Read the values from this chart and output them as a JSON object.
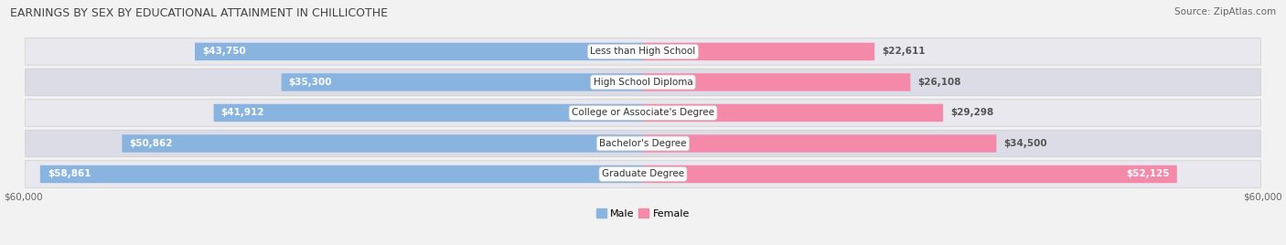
{
  "title": "EARNINGS BY SEX BY EDUCATIONAL ATTAINMENT IN CHILLICOTHE",
  "source": "Source: ZipAtlas.com",
  "categories": [
    "Less than High School",
    "High School Diploma",
    "College or Associate's Degree",
    "Bachelor's Degree",
    "Graduate Degree"
  ],
  "male_values": [
    43750,
    35300,
    41912,
    50862,
    58861
  ],
  "female_values": [
    22611,
    26108,
    29298,
    34500,
    52125
  ],
  "max_value": 60000,
  "male_color": "#8ab4e0",
  "female_color": "#f589aa",
  "male_label": "Male",
  "female_label": "Female",
  "axis_label_left": "$60,000",
  "axis_label_right": "$60,000",
  "bg_color": "#f2f2f2",
  "row_colors": [
    "#e8e8ee",
    "#dcdce6"
  ],
  "title_fontsize": 9,
  "source_fontsize": 7.5,
  "bar_label_fontsize": 7.5,
  "category_fontsize": 7.5
}
